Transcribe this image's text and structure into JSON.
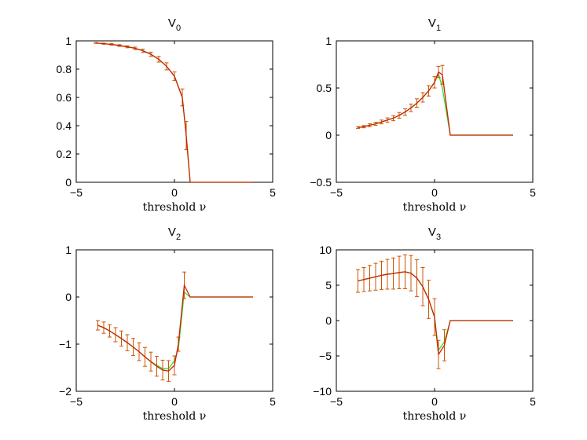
{
  "figure": {
    "background": "#ffffff",
    "colors": {
      "series_a": "#cc2200",
      "series_b": "#33dd33",
      "errorbar": "#cc5500",
      "axis": "#000000"
    }
  },
  "chart_data": [
    {
      "type": "line",
      "title": "V",
      "title_subscript": "0",
      "xlabel": "threshold ν",
      "ylabel": "",
      "xlim": [
        -5,
        5
      ],
      "ylim": [
        0,
        1
      ],
      "xticks": [
        -5,
        0,
        5
      ],
      "yticks": [
        0,
        0.2,
        0.4,
        0.6,
        0.8,
        1
      ],
      "ytick_labels": [
        "0",
        "0.2",
        "0.4",
        "0.6",
        "0.8",
        "1"
      ],
      "grid": false,
      "series": [
        {
          "x": [
            -4,
            -3.6,
            -3.2,
            -2.8,
            -2.4,
            -2.0,
            -1.6,
            -1.2,
            -0.8,
            -0.4,
            0,
            0.4,
            0.6,
            0.8,
            4
          ],
          "y": [
            0.985,
            0.98,
            0.975,
            0.967,
            0.958,
            0.947,
            0.93,
            0.905,
            0.87,
            0.82,
            0.75,
            0.6,
            0.33,
            0,
            0
          ],
          "err": [
            0.003,
            0.004,
            0.005,
            0.006,
            0.007,
            0.009,
            0.012,
            0.015,
            0.02,
            0.025,
            0.03,
            0.06,
            0.1,
            0,
            0
          ]
        },
        {
          "x": [
            -4,
            -3.6,
            -3.2,
            -2.8,
            -2.4,
            -2.0,
            -1.6,
            -1.2,
            -0.8,
            -0.4,
            0,
            0.4,
            0.6,
            0.8,
            4
          ],
          "y": [
            0.985,
            0.98,
            0.975,
            0.967,
            0.958,
            0.947,
            0.93,
            0.905,
            0.87,
            0.82,
            0.75,
            0.6,
            0.33,
            0,
            0
          ]
        }
      ]
    },
    {
      "type": "line",
      "title": "V",
      "title_subscript": "1",
      "xlabel": "threshold ν",
      "ylabel": "",
      "xlim": [
        -5,
        5
      ],
      "ylim": [
        -0.5,
        1
      ],
      "xticks": [
        -5,
        0,
        5
      ],
      "yticks": [
        -0.5,
        0,
        0.5,
        1
      ],
      "ytick_labels": [
        "−0.5",
        "0",
        "0.5",
        "1"
      ],
      "grid": false,
      "series": [
        {
          "x": [
            -3.9,
            -3.6,
            -3.3,
            -3.0,
            -2.7,
            -2.4,
            -2.1,
            -1.8,
            -1.5,
            -1.2,
            -0.9,
            -0.6,
            -0.3,
            0,
            0.2,
            0.4,
            0.8,
            4
          ],
          "y": [
            0.08,
            0.09,
            0.105,
            0.12,
            0.14,
            0.16,
            0.18,
            0.21,
            0.245,
            0.29,
            0.34,
            0.4,
            0.47,
            0.56,
            0.67,
            0.64,
            0,
            0
          ],
          "err": [
            0.01,
            0.012,
            0.015,
            0.017,
            0.02,
            0.023,
            0.027,
            0.03,
            0.035,
            0.04,
            0.045,
            0.05,
            0.055,
            0.06,
            0.06,
            0.1,
            0,
            0
          ]
        },
        {
          "x": [
            -3.9,
            -3.6,
            -3.3,
            -3.0,
            -2.7,
            -2.4,
            -2.1,
            -1.8,
            -1.5,
            -1.2,
            -0.9,
            -0.6,
            -0.3,
            0,
            0.2,
            0.4,
            0.8,
            4
          ],
          "y": [
            0.08,
            0.09,
            0.105,
            0.12,
            0.14,
            0.16,
            0.18,
            0.21,
            0.245,
            0.29,
            0.34,
            0.4,
            0.47,
            0.56,
            0.65,
            0.5,
            0,
            0
          ]
        }
      ]
    },
    {
      "type": "line",
      "title": "V",
      "title_subscript": "2",
      "xlabel": "threshold ν",
      "ylabel": "",
      "xlim": [
        -5,
        5
      ],
      "ylim": [
        -2,
        1
      ],
      "xticks": [
        -5,
        0,
        5
      ],
      "yticks": [
        -2,
        -1,
        0,
        1
      ],
      "ytick_labels": [
        "−2",
        "−1",
        "0",
        "1"
      ],
      "grid": false,
      "series": [
        {
          "x": [
            -3.9,
            -3.6,
            -3.3,
            -3.0,
            -2.7,
            -2.4,
            -2.1,
            -1.8,
            -1.5,
            -1.2,
            -0.9,
            -0.6,
            -0.3,
            0,
            0.2,
            0.5,
            0.8,
            4
          ],
          "y": [
            -0.6,
            -0.65,
            -0.72,
            -0.8,
            -0.88,
            -0.97,
            -1.06,
            -1.16,
            -1.27,
            -1.37,
            -1.47,
            -1.55,
            -1.57,
            -1.45,
            -1.0,
            0.25,
            0,
            0
          ],
          "err": [
            0.1,
            0.12,
            0.13,
            0.15,
            0.16,
            0.17,
            0.18,
            0.19,
            0.2,
            0.2,
            0.21,
            0.21,
            0.22,
            0.2,
            0.15,
            0.28,
            0,
            0
          ]
        },
        {
          "x": [
            -3.9,
            -3.6,
            -3.3,
            -3.0,
            -2.7,
            -2.4,
            -2.1,
            -1.8,
            -1.5,
            -1.2,
            -0.9,
            -0.6,
            -0.3,
            0,
            0.2,
            0.5,
            0.8,
            4
          ],
          "y": [
            -0.6,
            -0.65,
            -0.72,
            -0.8,
            -0.88,
            -0.97,
            -1.06,
            -1.16,
            -1.27,
            -1.37,
            -1.45,
            -1.52,
            -1.52,
            -1.35,
            -1.1,
            0.1,
            0,
            0
          ]
        }
      ]
    },
    {
      "type": "line",
      "title": "V",
      "title_subscript": "3",
      "xlabel": "threshold ν",
      "ylabel": "",
      "xlim": [
        -5,
        5
      ],
      "ylim": [
        -10,
        10
      ],
      "xticks": [
        -5,
        0,
        5
      ],
      "yticks": [
        -10,
        -5,
        0,
        5,
        10
      ],
      "ytick_labels": [
        "−10",
        "−5",
        "0",
        "5",
        "10"
      ],
      "grid": false,
      "series": [
        {
          "x": [
            -3.9,
            -3.6,
            -3.3,
            -3.0,
            -2.7,
            -2.4,
            -2.1,
            -1.8,
            -1.5,
            -1.2,
            -0.9,
            -0.6,
            -0.3,
            0,
            0.2,
            0.5,
            0.8,
            4
          ],
          "y": [
            5.6,
            5.8,
            6.0,
            6.2,
            6.4,
            6.55,
            6.65,
            6.8,
            6.9,
            6.7,
            6.0,
            4.8,
            3.0,
            0.5,
            -4.8,
            -3.5,
            0,
            0
          ],
          "err": [
            1.6,
            1.7,
            1.8,
            1.9,
            2.0,
            2.1,
            2.2,
            2.3,
            2.4,
            2.5,
            2.6,
            2.7,
            2.7,
            2.6,
            2.0,
            2.2,
            0,
            0
          ]
        },
        {
          "x": [
            -3.9,
            -3.6,
            -3.3,
            -3.0,
            -2.7,
            -2.4,
            -2.1,
            -1.8,
            -1.5,
            -1.2,
            -0.9,
            -0.6,
            -0.3,
            0,
            0.2,
            0.5,
            0.8,
            4
          ],
          "y": [
            5.6,
            5.8,
            6.0,
            6.2,
            6.4,
            6.55,
            6.65,
            6.8,
            6.9,
            6.7,
            6.0,
            4.8,
            3.0,
            0.5,
            -4.2,
            -3.0,
            0,
            0
          ]
        }
      ]
    }
  ]
}
